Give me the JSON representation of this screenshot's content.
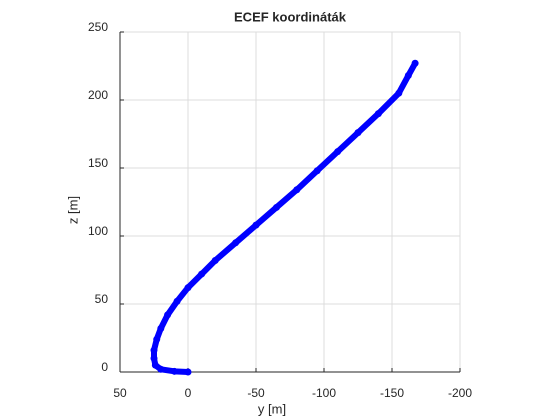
{
  "chart_data": {
    "type": "line",
    "title": "ECEF koordináták",
    "xlabel": "y [m]",
    "ylabel": "z [m]",
    "x": [
      0,
      10,
      20,
      24,
      25,
      25,
      23,
      20,
      15,
      8,
      0,
      -10,
      -20,
      -35,
      -50,
      -65,
      -80,
      -95,
      -110,
      -125,
      -140,
      -155,
      -162,
      -167
    ],
    "values": [
      0,
      0.5,
      2,
      5,
      10,
      16,
      24,
      32,
      42,
      52,
      62,
      72,
      82,
      95,
      108,
      121,
      134,
      148,
      162,
      176,
      190,
      205,
      218,
      227
    ],
    "color": "#0000ff",
    "xlim": [
      50,
      -200
    ],
    "xticks": [
      50,
      0,
      -50,
      -100,
      -150,
      -200
    ],
    "ylim": [
      0,
      250
    ],
    "yticks": [
      0,
      50,
      100,
      150,
      200,
      250
    ],
    "grid": true
  }
}
